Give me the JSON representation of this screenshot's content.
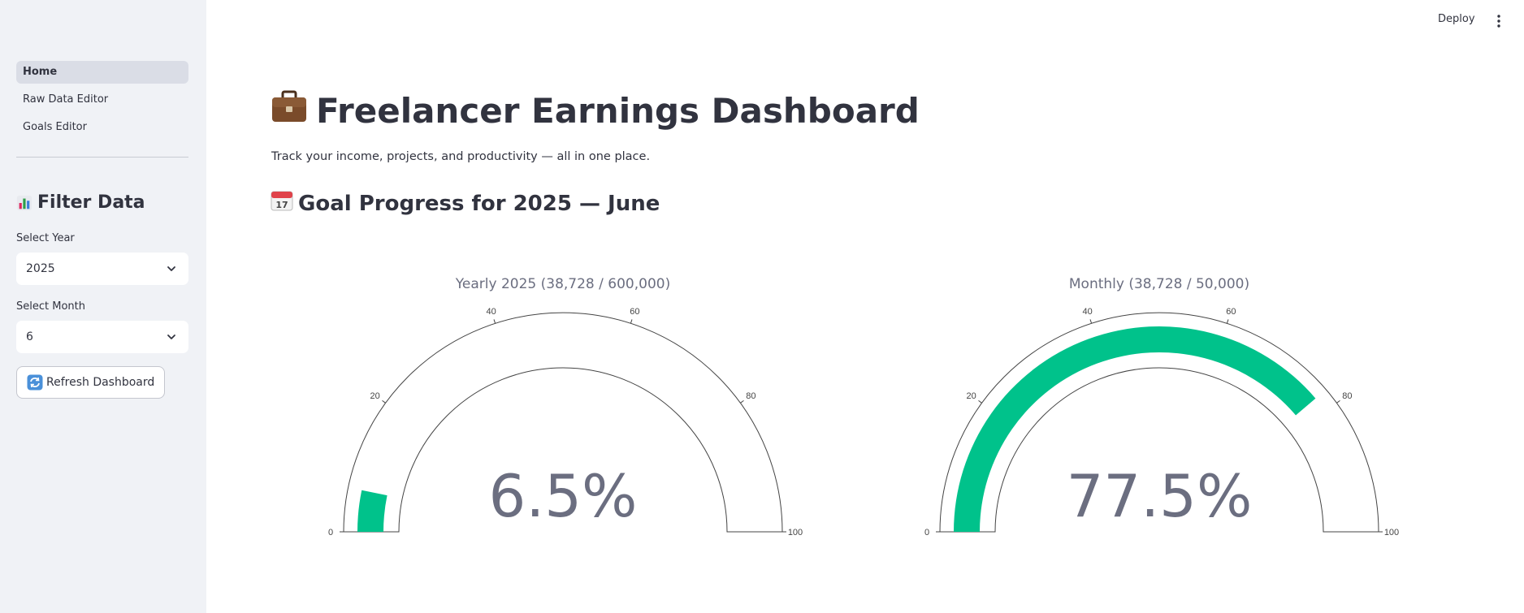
{
  "sidebar": {
    "nav": [
      {
        "label": "Home",
        "active": true
      },
      {
        "label": "Raw Data Editor",
        "active": false
      },
      {
        "label": "Goals Editor",
        "active": false
      }
    ],
    "filter_header": "Filter Data",
    "year_label": "Select Year",
    "year_value": "2025",
    "month_label": "Select Month",
    "month_value": "6",
    "refresh_label": "Refresh Dashboard"
  },
  "toolbar": {
    "deploy_label": "Deploy",
    "menu_icon": "kebab-menu-icon"
  },
  "main": {
    "title": "Freelancer Earnings Dashboard",
    "title_icon": "briefcase-icon",
    "subtitle": "Track your income, projects, and productivity — all in one place.",
    "section_title": "Goal Progress for 2025 — June",
    "section_icon": "calendar-icon"
  },
  "colors": {
    "accent": "#00c28b",
    "sidebar_bg": "#f0f2f6",
    "text": "#31333f",
    "gauge_text": "#6b6e80"
  },
  "chart_data": [
    {
      "type": "gauge",
      "title": "Yearly 2025 (38,728 / 600,000)",
      "value": 6.5,
      "value_text": "6.5%",
      "range": [
        0,
        100
      ],
      "ticks": [
        "0",
        "20",
        "40",
        "60",
        "80",
        "100"
      ]
    },
    {
      "type": "gauge",
      "title": "Monthly (38,728 / 50,000)",
      "value": 77.5,
      "value_text": "77.5%",
      "range": [
        0,
        100
      ],
      "ticks": [
        "0",
        "20",
        "40",
        "60",
        "80",
        "100"
      ]
    }
  ]
}
